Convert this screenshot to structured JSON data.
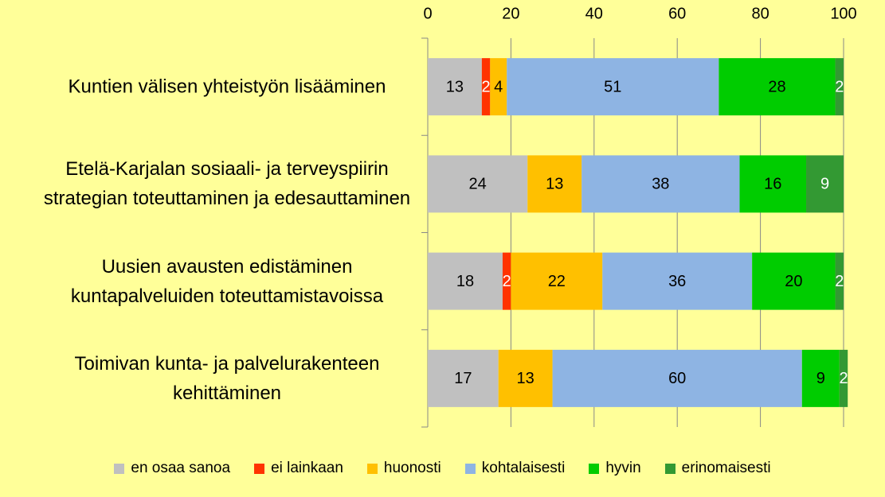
{
  "chart_data": {
    "type": "stacked-bar-horizontal",
    "categories": [
      "Kuntien välisen yhteistyön lisääminen",
      "Etelä-Karjalan sosiaali- ja terveyspiirin strategian toteuttaminen ja edesauttaminen",
      "Uusien avausten edistäminen kuntapalveluiden toteuttamistavoissa",
      "Toimivan kunta- ja palvelurakenteen kehittäminen"
    ],
    "series": [
      {
        "name": "en osaa sanoa",
        "color": "#c0c0c0",
        "label_color": "#000000",
        "values": [
          13,
          24,
          18,
          17
        ]
      },
      {
        "name": "ei lainkaan",
        "color": "#ff3300",
        "label_color": "#ffffff",
        "values": [
          2,
          null,
          2,
          null
        ]
      },
      {
        "name": "huonosti",
        "color": "#ffc000",
        "label_color": "#000000",
        "values": [
          4,
          13,
          22,
          13
        ]
      },
      {
        "name": "kohtalaisesti",
        "color": "#8eb4e3",
        "label_color": "#000000",
        "values": [
          51,
          38,
          36,
          60
        ]
      },
      {
        "name": "hyvin",
        "color": "#00cc00",
        "label_color": "#000000",
        "values": [
          28,
          16,
          20,
          9
        ]
      },
      {
        "name": "erinomaisesti",
        "color": "#339933",
        "label_color": "#ffffff",
        "values": [
          2,
          9,
          2,
          2
        ]
      }
    ],
    "xlim": [
      0,
      100
    ],
    "xticks": [
      0,
      20,
      40,
      60,
      80,
      100
    ],
    "grid": true,
    "legend": "bottom"
  }
}
